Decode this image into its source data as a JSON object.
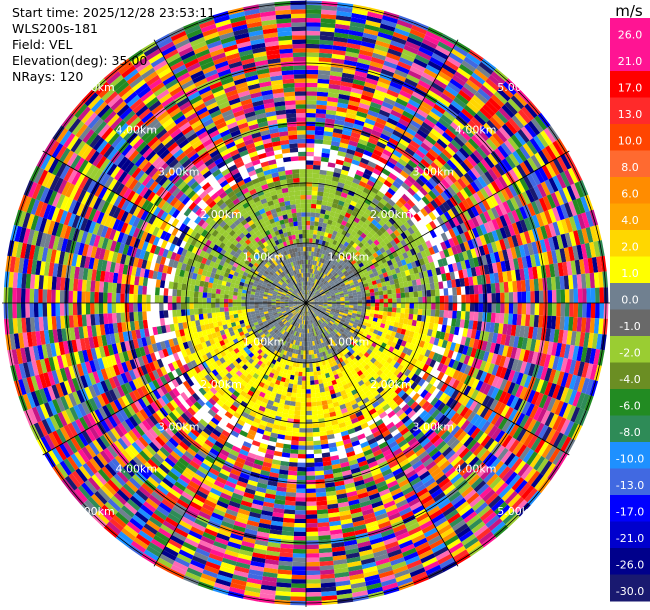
{
  "info": {
    "start_time": "Start time: 2025/12/28 23:53:11",
    "instrument": "WLS200s-181",
    "field": "Field: VEL",
    "elevation": "Elevation(deg): 35.00",
    "nrays": "NRays: 120"
  },
  "colorbar": {
    "unit": "m/s",
    "labels": [
      "26.0",
      "21.0",
      "17.0",
      "13.0",
      "10.0",
      "8.0",
      "6.0",
      "4.0",
      "2.0",
      "1.0",
      "0.0",
      "-1.0",
      "-2.0",
      "-4.0",
      "-6.0",
      "-8.0",
      "-10.0",
      "-13.0",
      "-17.0",
      "-21.0",
      "-26.0",
      "-30.0"
    ],
    "colors": [
      "#ff1493",
      "#ff1493",
      "#ff0000",
      "#ff2a2a",
      "#ff4500",
      "#ff6a30",
      "#ff8c00",
      "#ffa500",
      "#ffd700",
      "#ffff00",
      "#708090",
      "#696969",
      "#9acd32",
      "#6b8e23",
      "#228b22",
      "#2e8b57",
      "#1e90ff",
      "#4169e1",
      "#0000ff",
      "#0000cd",
      "#00008b",
      "#191970"
    ]
  },
  "chart_data": {
    "type": "heatmap",
    "projection": "polar (PPI)",
    "field": "VEL",
    "units": "m/s",
    "n_rays": 120,
    "elevation_deg": 35.0,
    "range_ring_labels": [
      "1.00km",
      "2.00km",
      "3.00km",
      "4.00km",
      "5.00km"
    ],
    "range_rings_km": [
      1,
      2,
      3,
      4,
      5
    ],
    "max_range_km": 7.2,
    "value_range": [
      -30.0,
      26.0
    ],
    "description_values": {
      "inner_0_to_1km": "mostly 0.0 to -1.0 (grey)",
      "ring_1_to_2km_north": "-1.0 to -2.0 (green)",
      "ring_1_to_2km_south": "1.0 to 4.0 (yellow)",
      "outer": "noisy, full range -30.0 to 26.0"
    }
  }
}
